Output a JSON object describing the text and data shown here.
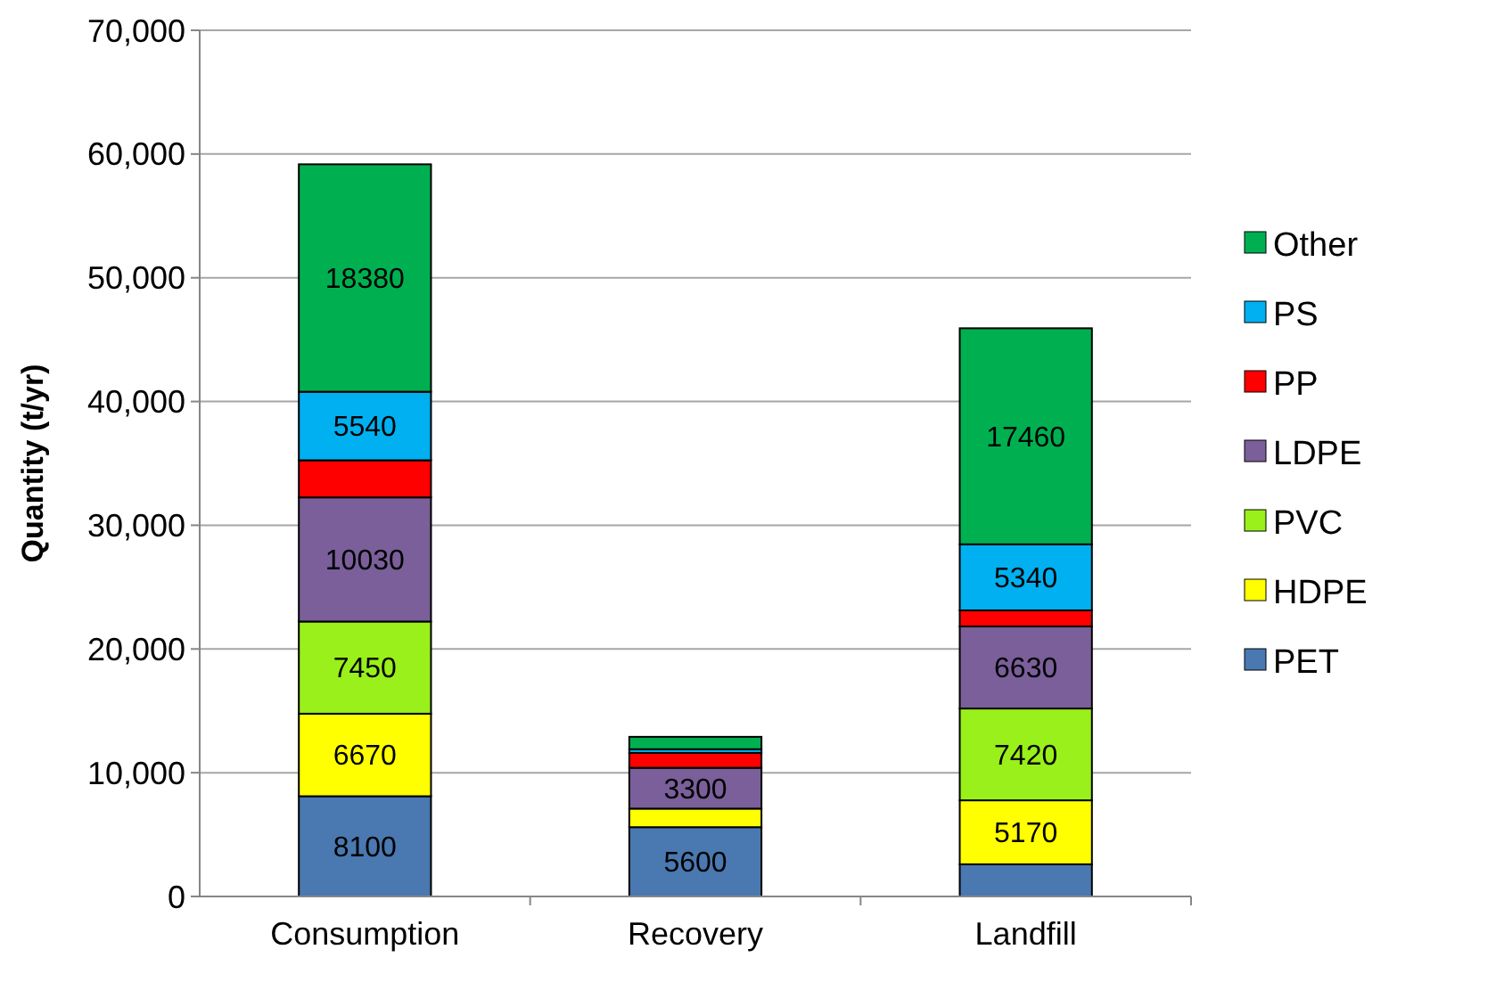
{
  "chart_data": {
    "type": "bar",
    "stacked": true,
    "ylabel": "Quantity (t/yr)",
    "categories": [
      "Consumption",
      "Recovery",
      "Landfill"
    ],
    "ylim": [
      0,
      70000
    ],
    "yticks": [
      0,
      {
        "value": 10000,
        "label": "10,000"
      },
      {
        "value": 20000,
        "label": "20,000"
      },
      {
        "value": 30000,
        "label": "30,000"
      },
      {
        "value": 40000,
        "label": "40,000"
      },
      {
        "value": 50000,
        "label": "50,000"
      },
      {
        "value": 60000,
        "label": "60,000"
      },
      {
        "value": 70000,
        "label": "70,000"
      }
    ],
    "grid": "y",
    "legend": "right",
    "series": [
      {
        "name": "PET",
        "color": "#4a78b0",
        "values": [
          8100,
          5600,
          2600
        ],
        "value_labels": [
          "8100",
          "5600",
          null
        ]
      },
      {
        "name": "HDPE",
        "color": "#ffff00",
        "values": [
          6670,
          1500,
          5170
        ],
        "value_labels": [
          "6670",
          null,
          "5170"
        ]
      },
      {
        "name": "PVC",
        "color": "#99f01a",
        "values": [
          7450,
          null,
          7420
        ],
        "value_labels": [
          "7450",
          null,
          "7420"
        ]
      },
      {
        "name": "LDPE",
        "color": "#7a5f9a",
        "values": [
          10030,
          3300,
          6630
        ],
        "value_labels": [
          "10030",
          "3300",
          "6630"
        ]
      },
      {
        "name": "PP",
        "color": "#ff0000",
        "values": [
          3000,
          1200,
          1300
        ],
        "value_labels": [
          null,
          null,
          null
        ]
      },
      {
        "name": "PS",
        "color": "#00b0f0",
        "values": [
          5540,
          300,
          5340
        ],
        "value_labels": [
          "5540",
          null,
          "5340"
        ]
      },
      {
        "name": "Other",
        "color": "#00b050",
        "values": [
          18380,
          1000,
          17460
        ],
        "value_labels": [
          "18380",
          null,
          "17460"
        ]
      }
    ]
  }
}
